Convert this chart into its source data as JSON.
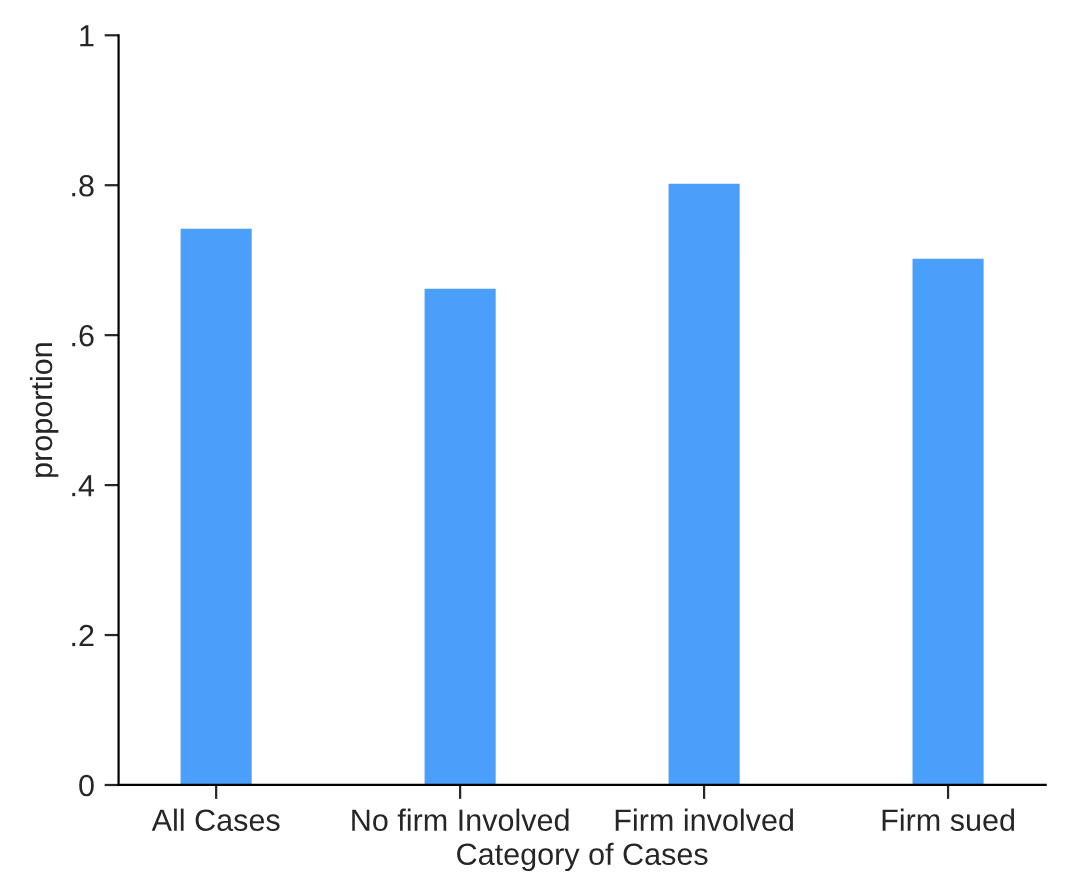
{
  "chart_data": {
    "type": "bar",
    "xlabel": "Category of Cases",
    "ylabel": "proportion",
    "categories": [
      "All Cases",
      "No firm Involved",
      "Firm involved",
      "Firm sued"
    ],
    "values": [
      0.74,
      0.66,
      0.8,
      0.7
    ],
    "color": "#4a9ffa",
    "ylim": [
      0,
      1.0
    ],
    "yticks": [
      {
        "value": 0,
        "label": "0"
      },
      {
        "value": 0.2,
        "label": ".2"
      },
      {
        "value": 0.4,
        "label": ".4"
      },
      {
        "value": 0.6,
        "label": ".6"
      },
      {
        "value": 0.8,
        "label": ".8"
      },
      {
        "value": 1,
        "label": "1"
      }
    ],
    "grid": false,
    "legend": false
  }
}
